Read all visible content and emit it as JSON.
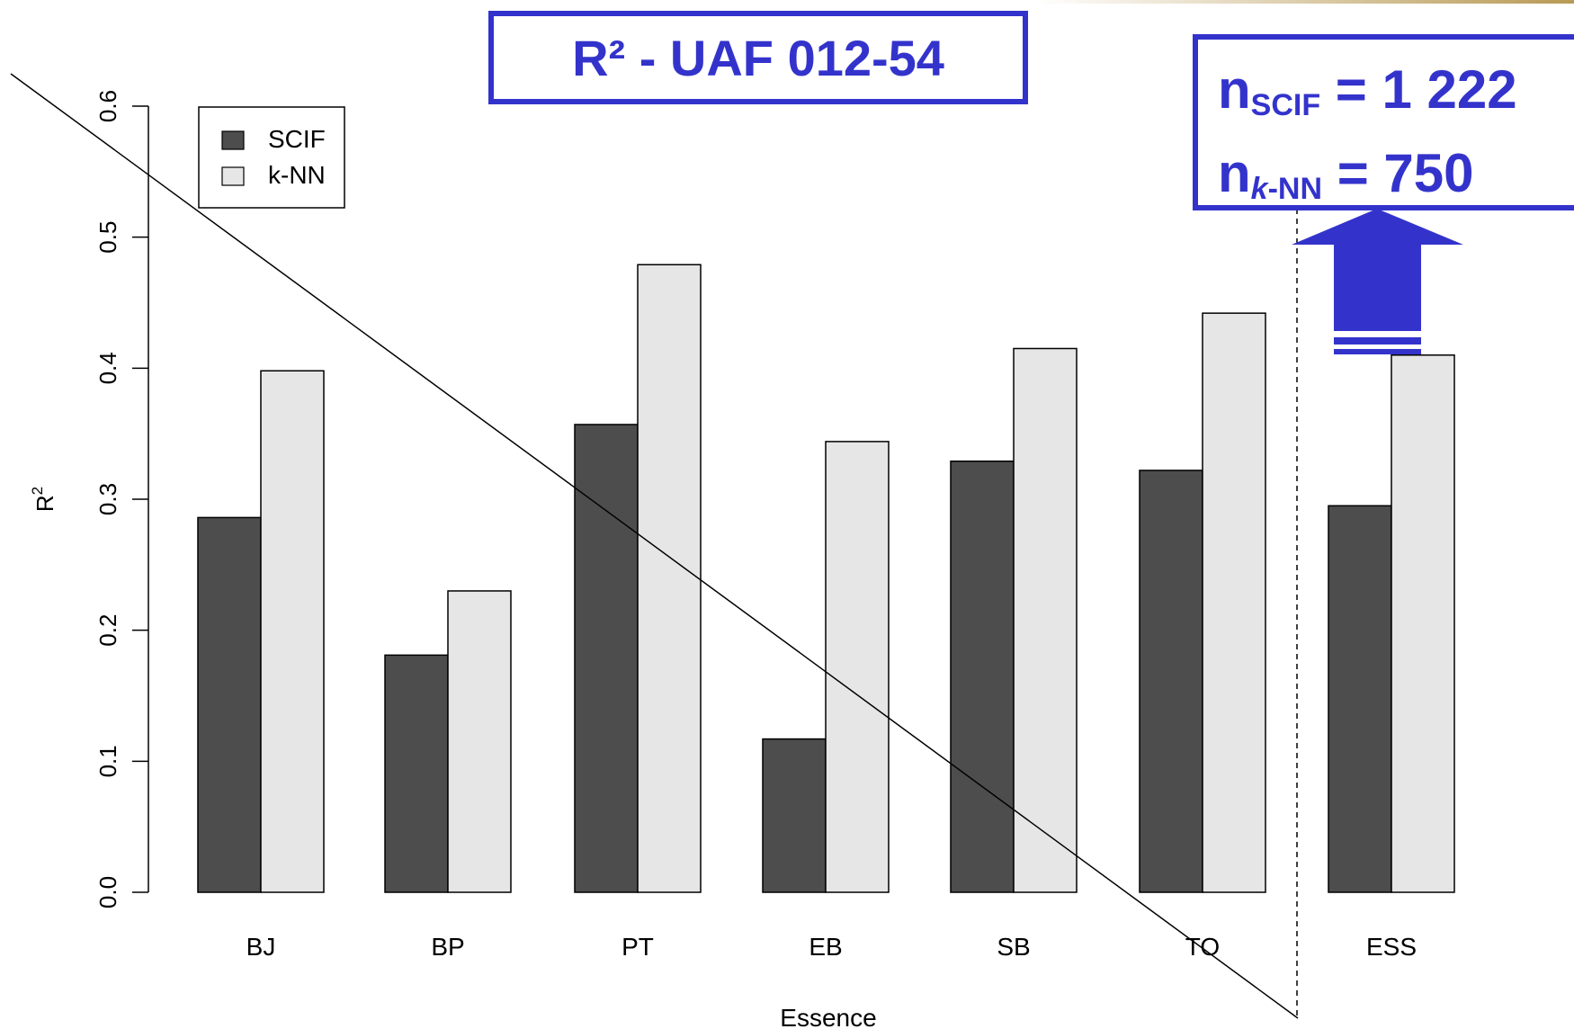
{
  "chart_data": {
    "type": "bar",
    "title": "R² - UAF 012-54",
    "xlabel": "Essence",
    "ylabel": "R²",
    "ylim": [
      0,
      0.6
    ],
    "yticks": [
      "0.0",
      "0.1",
      "0.2",
      "0.3",
      "0.4",
      "0.5",
      "0.6"
    ],
    "grid": false,
    "legend_position": "top-left",
    "categories": [
      "BJ",
      "BP",
      "PT",
      "EB",
      "SB",
      "TO",
      "ESS"
    ],
    "series": [
      {
        "name": "SCIF",
        "color": "#4d4d4d",
        "values": [
          0.286,
          0.181,
          0.357,
          0.117,
          0.329,
          0.322,
          0.295
        ]
      },
      {
        "name": "k-NN",
        "color": "#e6e6e6",
        "values": [
          0.398,
          0.23,
          0.479,
          0.344,
          0.415,
          0.442,
          0.41
        ]
      }
    ],
    "annotations": {
      "n_scif_label": "SCIF",
      "n_scif_value": "= 1 222",
      "n_knn_label_italic": "k",
      "n_knn_label_rest": "-NN",
      "n_knn_value": "= 750"
    }
  },
  "colors": {
    "accent": "#3333cc"
  }
}
